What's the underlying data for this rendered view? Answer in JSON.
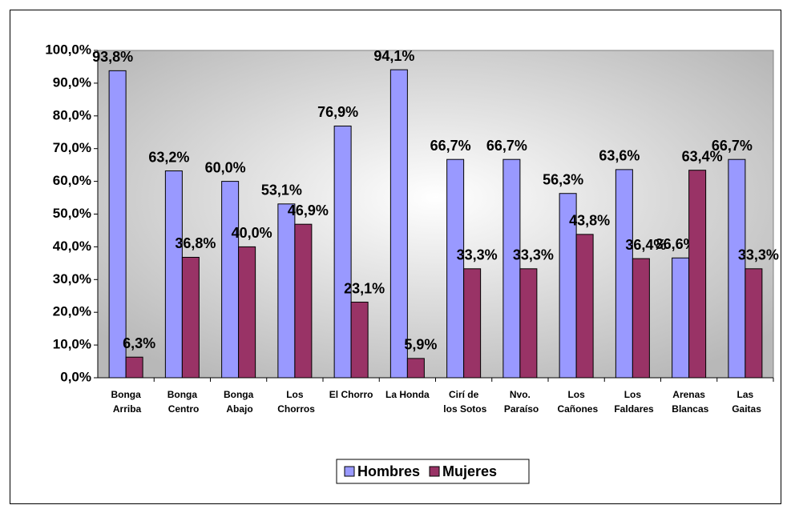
{
  "chart_data": {
    "type": "bar",
    "categories": [
      "Bonga\nArriba",
      "Bonga\nCentro",
      "Bonga\nAbajo",
      "Los\nChorros",
      "El Chorro",
      "La Honda",
      "Cirí de\nlos Sotos",
      "Nvo.\nParaíso",
      "Los\nCañones",
      "Los\nFaldares",
      "Arenas\nBlancas",
      "Las\nGaitas"
    ],
    "series": [
      {
        "name": "Hombres",
        "color": "#9999ff",
        "values": [
          93.8,
          63.2,
          60.0,
          53.1,
          76.9,
          94.1,
          66.7,
          66.7,
          56.3,
          63.6,
          36.6,
          66.7
        ],
        "value_labels": [
          "93,8%",
          "63,2%",
          "60,0%",
          "53,1%",
          "76,9%",
          "94,1%",
          "66,7%",
          "66,7%",
          "56,3%",
          "63,6%",
          "36,6%",
          "66,7%"
        ]
      },
      {
        "name": "Mujeres",
        "color": "#993366",
        "values": [
          6.3,
          36.8,
          40.0,
          46.9,
          23.1,
          5.9,
          33.3,
          33.3,
          43.8,
          36.4,
          63.4,
          33.3
        ],
        "value_labels": [
          "6,3%",
          "36,8%",
          "40,0%",
          "46,9%",
          "23,1%",
          "5,9%",
          "33,3%",
          "33,3%",
          "43,8%",
          "36,4%",
          "63,4%",
          "33,3%"
        ]
      }
    ],
    "ylim": [
      0,
      100
    ],
    "yticks": [
      {
        "value": 0,
        "label": "0,0%"
      },
      {
        "value": 10,
        "label": "10,0%"
      },
      {
        "value": 20,
        "label": "20,0%"
      },
      {
        "value": 30,
        "label": "30,0%"
      },
      {
        "value": 40,
        "label": "40,0%"
      },
      {
        "value": 50,
        "label": "50,0%"
      },
      {
        "value": 60,
        "label": "60,0%"
      },
      {
        "value": 70,
        "label": "70,0%"
      },
      {
        "value": 80,
        "label": "80,0%"
      },
      {
        "value": 90,
        "label": "90,0%"
      },
      {
        "value": 100,
        "label": "100,0%"
      }
    ],
    "legend": "bottom"
  }
}
